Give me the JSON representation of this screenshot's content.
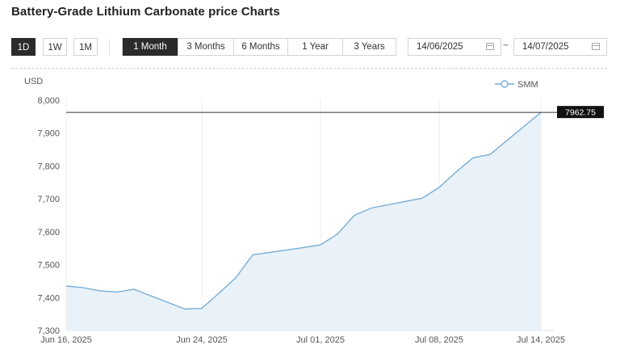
{
  "page": {
    "title": "Battery-Grade Lithium Carbonate price Charts"
  },
  "toolbar": {
    "intervals": [
      "1D",
      "1W",
      "1M"
    ],
    "active_interval": "1D",
    "ranges": [
      "1 Month",
      "3 Months",
      "6 Months",
      "1 Year",
      "3 Years"
    ],
    "active_range": "1 Month",
    "start_date": "14/06/2025",
    "end_date": "14/07/2025",
    "separator": "~"
  },
  "colors": {
    "line": "#7aaed6",
    "area": "#e9f2f8",
    "active_button": "#2b2b2b",
    "price_tag": "#111111"
  },
  "chart_data": {
    "type": "area",
    "ylabel": "USD",
    "ylim": [
      7300,
      8000
    ],
    "yticks": [
      "8,000",
      "7,900",
      "7,800",
      "7,700",
      "7,600",
      "7,500",
      "7,400",
      "7,300"
    ],
    "xtick_labels": [
      "Jun 16, 2025",
      "Jun 24, 2025",
      "Jul 01, 2025",
      "Jul 08, 2025",
      "Jul 14, 2025"
    ],
    "x": [
      "2025-06-16",
      "2025-06-17",
      "2025-06-18",
      "2025-06-19",
      "2025-06-20",
      "2025-06-23",
      "2025-06-24",
      "2025-06-25",
      "2025-06-26",
      "2025-06-27",
      "2025-06-30",
      "2025-07-01",
      "2025-07-02",
      "2025-07-03",
      "2025-07-04",
      "2025-07-07",
      "2025-07-08",
      "2025-07-09",
      "2025-07-10",
      "2025-07-11",
      "2025-07-14"
    ],
    "series": [
      {
        "name": "SMM",
        "values": [
          7435,
          7430,
          7420,
          7417,
          7425,
          7365,
          7367,
          7413,
          7460,
          7530,
          7552,
          7560,
          7593,
          7650,
          7672,
          7702,
          7735,
          7782,
          7825,
          7835,
          7962.75
        ]
      }
    ],
    "last_value_label": "7962.75",
    "legend": "top-right",
    "grid": "vertical"
  }
}
